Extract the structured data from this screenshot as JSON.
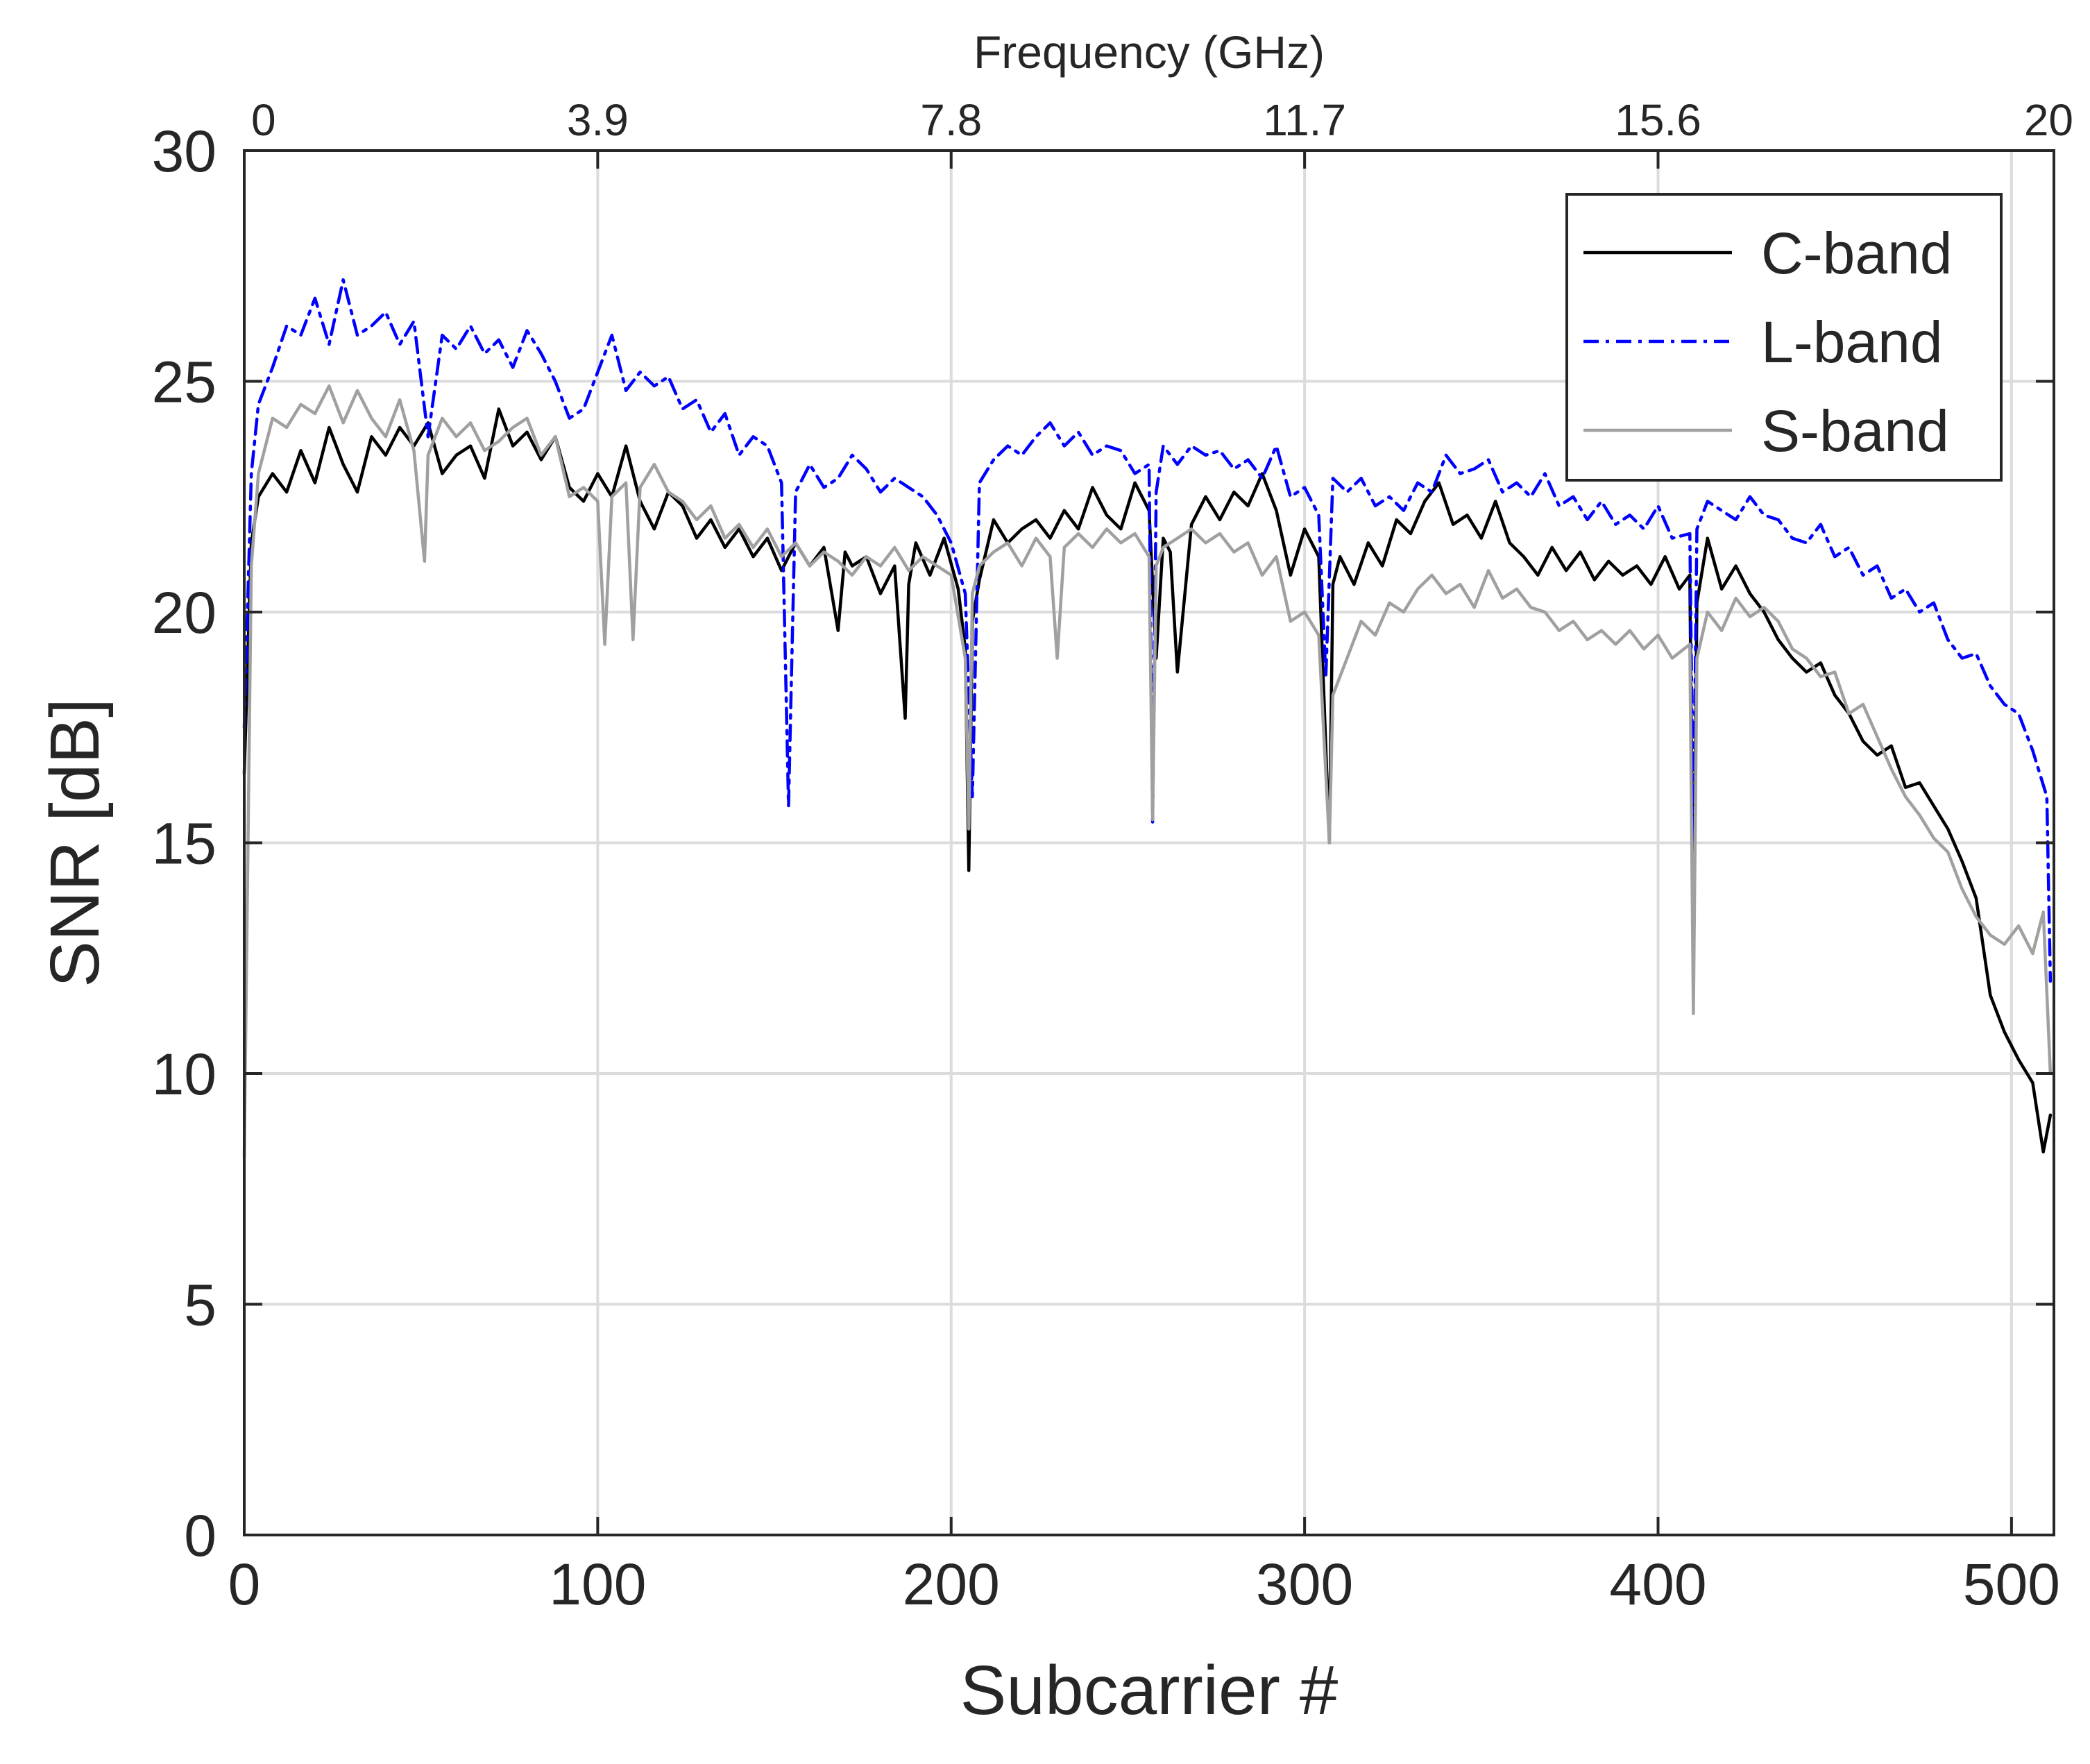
{
  "chart_data": {
    "type": "line",
    "xlabel": "Subcarrier #",
    "ylabel": "SNR [dB]",
    "top_xlabel": "Frequency (GHz)",
    "xlim": [
      0,
      512
    ],
    "ylim": [
      0,
      30
    ],
    "xticks": [
      0,
      100,
      200,
      300,
      400,
      500
    ],
    "yticks": [
      0,
      5,
      10,
      15,
      20,
      25,
      30
    ],
    "top_ticks": [
      {
        "label": "0",
        "subcarrier": 0
      },
      {
        "label": "3.9",
        "subcarrier": 100
      },
      {
        "label": "7.8",
        "subcarrier": 200
      },
      {
        "label": "11.7",
        "subcarrier": 300
      },
      {
        "label": "15.6",
        "subcarrier": 400
      },
      {
        "label": "20",
        "subcarrier": 512
      }
    ],
    "grid": true,
    "legend_position": "top-right",
    "series": [
      {
        "name": "C-band",
        "color": "#000000",
        "style": "solid",
        "x": [
          0,
          2,
          4,
          8,
          12,
          16,
          20,
          24,
          28,
          32,
          36,
          40,
          44,
          48,
          52,
          56,
          60,
          64,
          68,
          72,
          76,
          80,
          84,
          88,
          92,
          96,
          100,
          104,
          108,
          112,
          116,
          120,
          124,
          128,
          132,
          136,
          140,
          144,
          148,
          152,
          156,
          160,
          164,
          168,
          170,
          172,
          176,
          180,
          184,
          187,
          188,
          190,
          194,
          198,
          202,
          204,
          205,
          206,
          208,
          212,
          216,
          220,
          224,
          228,
          232,
          236,
          240,
          244,
          248,
          252,
          256,
          258,
          260,
          262,
          264,
          268,
          272,
          276,
          280,
          284,
          288,
          292,
          296,
          300,
          304,
          307,
          308,
          310,
          314,
          318,
          322,
          326,
          330,
          334,
          338,
          342,
          346,
          350,
          354,
          358,
          362,
          366,
          370,
          374,
          378,
          382,
          386,
          390,
          394,
          398,
          402,
          406,
          409,
          410,
          411,
          414,
          418,
          422,
          426,
          430,
          434,
          438,
          442,
          446,
          450,
          454,
          458,
          462,
          466,
          470,
          474,
          478,
          482,
          486,
          490,
          494,
          498,
          502,
          506,
          509,
          511
        ],
        "y": [
          16.5,
          21.5,
          22.5,
          23.0,
          22.6,
          23.5,
          22.8,
          24.0,
          23.2,
          22.6,
          23.8,
          23.4,
          24.0,
          23.6,
          24.1,
          23.0,
          23.4,
          23.6,
          22.9,
          24.4,
          23.6,
          23.9,
          23.3,
          23.8,
          22.7,
          22.4,
          23.0,
          22.5,
          23.6,
          22.4,
          21.8,
          22.6,
          22.3,
          21.6,
          22.0,
          21.4,
          21.8,
          21.2,
          21.6,
          20.9,
          21.5,
          21.0,
          21.4,
          19.6,
          21.3,
          21.0,
          21.2,
          20.4,
          21.0,
          17.7,
          20.6,
          21.5,
          20.8,
          21.6,
          20.5,
          19.2,
          14.4,
          19.8,
          20.7,
          22.0,
          21.5,
          21.8,
          22.0,
          21.6,
          22.2,
          21.8,
          22.7,
          22.1,
          21.8,
          22.8,
          22.2,
          19.0,
          21.6,
          21.3,
          18.7,
          21.9,
          22.5,
          22.0,
          22.6,
          22.3,
          23.0,
          22.2,
          20.8,
          21.8,
          21.2,
          15.0,
          20.6,
          21.2,
          20.6,
          21.5,
          21.0,
          22.0,
          21.7,
          22.4,
          22.8,
          21.9,
          22.1,
          21.6,
          22.4,
          21.5,
          21.2,
          20.8,
          21.4,
          20.9,
          21.3,
          20.7,
          21.1,
          20.8,
          21.0,
          20.6,
          21.2,
          20.5,
          20.8,
          12.5,
          20.2,
          21.6,
          20.5,
          21.0,
          20.4,
          20.0,
          19.4,
          19.0,
          18.7,
          18.9,
          18.2,
          17.8,
          17.2,
          16.9,
          17.1,
          16.2,
          16.3,
          15.8,
          15.3,
          14.6,
          13.8,
          11.7,
          10.9,
          10.3,
          9.8,
          8.3,
          9.1
        ]
      },
      {
        "name": "L-band",
        "color": "#0000ff",
        "style": "dashdot",
        "x": [
          0,
          2,
          4,
          8,
          12,
          16,
          20,
          24,
          28,
          32,
          36,
          40,
          44,
          48,
          52,
          56,
          60,
          64,
          68,
          72,
          76,
          80,
          84,
          88,
          92,
          96,
          100,
          104,
          108,
          112,
          116,
          120,
          124,
          128,
          132,
          136,
          140,
          144,
          148,
          152,
          154,
          156,
          160,
          164,
          168,
          172,
          176,
          180,
          184,
          188,
          192,
          196,
          200,
          204,
          206,
          208,
          212,
          216,
          220,
          224,
          228,
          232,
          236,
          240,
          244,
          248,
          252,
          256,
          257,
          258,
          260,
          264,
          268,
          272,
          276,
          280,
          284,
          288,
          292,
          296,
          300,
          304,
          306,
          308,
          312,
          316,
          320,
          324,
          328,
          332,
          336,
          340,
          344,
          348,
          352,
          356,
          360,
          364,
          368,
          372,
          376,
          380,
          384,
          388,
          392,
          396,
          400,
          404,
          409,
          410,
          411,
          414,
          418,
          422,
          426,
          430,
          434,
          438,
          442,
          446,
          450,
          454,
          458,
          462,
          466,
          470,
          474,
          478,
          482,
          486,
          490,
          494,
          498,
          502,
          506,
          510,
          511
        ],
        "y": [
          17.5,
          23.0,
          24.5,
          25.3,
          26.2,
          26.0,
          26.8,
          25.8,
          27.2,
          26.0,
          26.2,
          26.5,
          25.8,
          26.3,
          23.8,
          26.0,
          25.7,
          26.2,
          25.6,
          25.9,
          25.3,
          26.1,
          25.6,
          25.0,
          24.2,
          24.4,
          25.2,
          26.0,
          24.8,
          25.2,
          24.9,
          25.1,
          24.4,
          24.6,
          23.9,
          24.3,
          23.4,
          23.8,
          23.6,
          22.8,
          15.8,
          22.6,
          23.2,
          22.7,
          22.9,
          23.4,
          23.1,
          22.6,
          22.9,
          22.7,
          22.5,
          22.1,
          21.5,
          20.4,
          16.0,
          22.8,
          23.3,
          23.6,
          23.4,
          23.8,
          24.1,
          23.6,
          23.9,
          23.4,
          23.6,
          23.5,
          23.0,
          23.2,
          15.4,
          22.6,
          23.6,
          23.2,
          23.6,
          23.4,
          23.5,
          23.1,
          23.3,
          22.9,
          23.6,
          22.5,
          22.7,
          22.1,
          18.6,
          22.9,
          22.6,
          22.9,
          22.3,
          22.5,
          22.2,
          22.8,
          22.6,
          23.4,
          23.0,
          23.1,
          23.3,
          22.6,
          22.8,
          22.5,
          23.0,
          22.3,
          22.5,
          22.0,
          22.4,
          21.9,
          22.1,
          21.8,
          22.3,
          21.6,
          21.7,
          15.0,
          21.8,
          22.4,
          22.2,
          22.0,
          22.5,
          22.1,
          22.0,
          21.6,
          21.5,
          21.9,
          21.2,
          21.4,
          20.8,
          21.0,
          20.3,
          20.5,
          20.0,
          20.2,
          19.4,
          19.0,
          19.1,
          18.4,
          18.0,
          17.8,
          17.0,
          16.0,
          12.0
        ]
      },
      {
        "name": "S-band",
        "color": "#a0a0a0",
        "style": "solid",
        "x": [
          0,
          2,
          4,
          8,
          12,
          16,
          20,
          24,
          28,
          32,
          36,
          40,
          44,
          48,
          51,
          52,
          56,
          60,
          64,
          68,
          72,
          76,
          80,
          84,
          88,
          92,
          96,
          100,
          102,
          104,
          108,
          110,
          112,
          116,
          120,
          124,
          128,
          132,
          136,
          140,
          144,
          148,
          152,
          156,
          160,
          164,
          168,
          172,
          176,
          180,
          184,
          188,
          192,
          196,
          200,
          204,
          205,
          206,
          208,
          212,
          216,
          220,
          224,
          228,
          230,
          232,
          236,
          240,
          244,
          248,
          252,
          256,
          257,
          258,
          260,
          264,
          268,
          272,
          276,
          280,
          284,
          288,
          292,
          296,
          300,
          304,
          307,
          308,
          312,
          316,
          320,
          324,
          328,
          332,
          336,
          340,
          344,
          348,
          352,
          356,
          360,
          364,
          368,
          372,
          376,
          380,
          384,
          388,
          392,
          396,
          400,
          404,
          409,
          410,
          411,
          414,
          418,
          422,
          426,
          430,
          434,
          438,
          442,
          446,
          450,
          454,
          458,
          462,
          466,
          470,
          474,
          478,
          482,
          486,
          490,
          494,
          498,
          502,
          506,
          509,
          511
        ],
        "y": [
          8.2,
          21.0,
          23.0,
          24.2,
          24.0,
          24.5,
          24.3,
          24.9,
          24.1,
          24.8,
          24.2,
          23.8,
          24.6,
          23.5,
          21.1,
          23.4,
          24.2,
          23.8,
          24.1,
          23.5,
          23.7,
          24.0,
          24.2,
          23.4,
          23.8,
          22.5,
          22.7,
          22.4,
          19.3,
          22.5,
          22.8,
          19.4,
          22.7,
          23.2,
          22.6,
          22.4,
          22.0,
          22.3,
          21.6,
          21.9,
          21.4,
          21.8,
          21.2,
          21.5,
          21.0,
          21.3,
          21.1,
          20.8,
          21.2,
          21.0,
          21.4,
          20.9,
          21.2,
          21.0,
          20.8,
          19.0,
          15.3,
          20.4,
          21.0,
          21.3,
          21.5,
          21.0,
          21.6,
          21.2,
          19.0,
          21.4,
          21.7,
          21.4,
          21.8,
          21.5,
          21.7,
          21.2,
          15.5,
          21.0,
          21.4,
          21.6,
          21.8,
          21.5,
          21.7,
          21.3,
          21.5,
          20.8,
          21.2,
          19.8,
          20.0,
          19.5,
          15.0,
          18.2,
          19.0,
          19.8,
          19.5,
          20.2,
          20.0,
          20.5,
          20.8,
          20.4,
          20.6,
          20.1,
          20.9,
          20.3,
          20.5,
          20.1,
          20.0,
          19.6,
          19.8,
          19.4,
          19.6,
          19.3,
          19.6,
          19.2,
          19.5,
          19.0,
          19.3,
          11.3,
          19.0,
          20.0,
          19.6,
          20.3,
          19.9,
          20.1,
          19.8,
          19.2,
          19.0,
          18.6,
          18.7,
          17.8,
          18.0,
          17.3,
          16.6,
          16.0,
          15.6,
          15.1,
          14.8,
          14.0,
          13.4,
          13.0,
          12.8,
          13.2,
          12.6,
          13.5,
          10.0
        ]
      }
    ]
  }
}
